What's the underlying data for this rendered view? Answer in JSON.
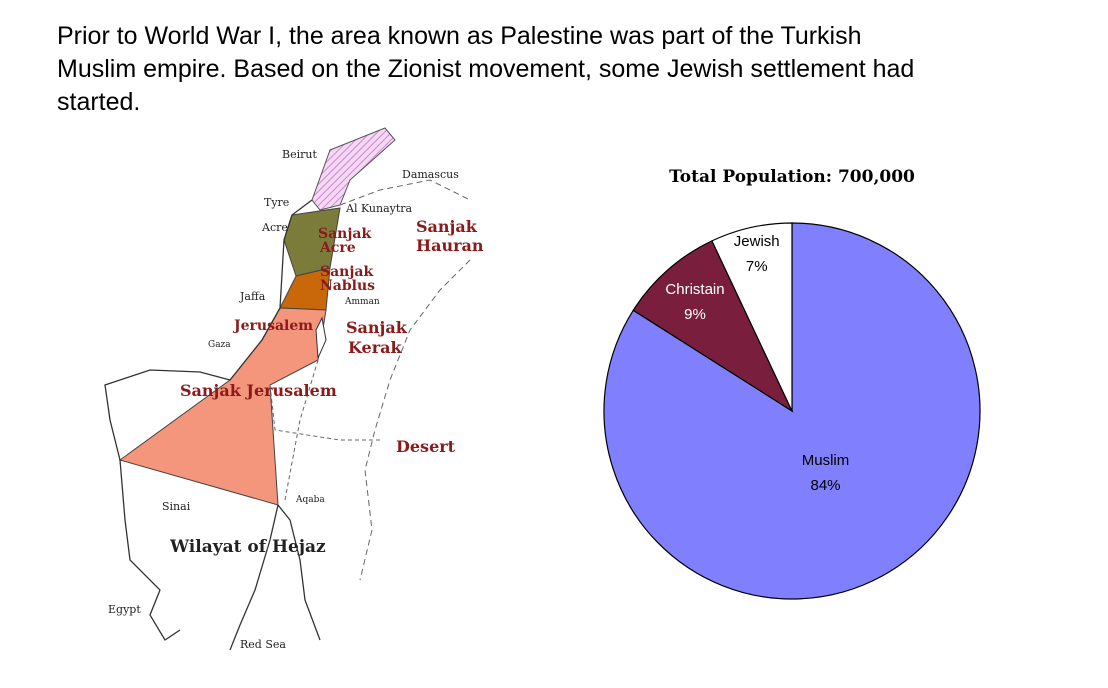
{
  "intro": {
    "lines": [
      "Prior to World War I, the area known as Palestine was part of the Turkish",
      "Muslim empire.  Based on the Zionist movement, some Jewish settlement had",
      "started."
    ]
  },
  "map": {
    "labels": [
      "Beirut",
      "Damascus",
      "Tyre",
      "Al Kunaytra",
      "Acre",
      "Sanjak",
      "Acre",
      "Sanjak",
      "Hauran",
      "Sanjak",
      "Nablus",
      "Amman",
      "Jaffa",
      "Jerusalem",
      "Gaza",
      "Sanjak",
      "Kerak",
      "Sanjak Jerusalem",
      "Desert",
      "Sinai",
      "Aqaba",
      "Wilayat of Hejaz",
      "Egypt",
      "Red Sea"
    ]
  },
  "chart_data": {
    "type": "pie",
    "title": "Total Population: 700,000",
    "categories": [
      "Muslim",
      "Christain",
      "Jewish"
    ],
    "values": [
      84,
      9,
      7
    ],
    "value_labels": [
      "84%",
      "9%",
      "7%"
    ],
    "colors": [
      "#8080ff",
      "#7a1e3e",
      "#ffffff"
    ]
  }
}
